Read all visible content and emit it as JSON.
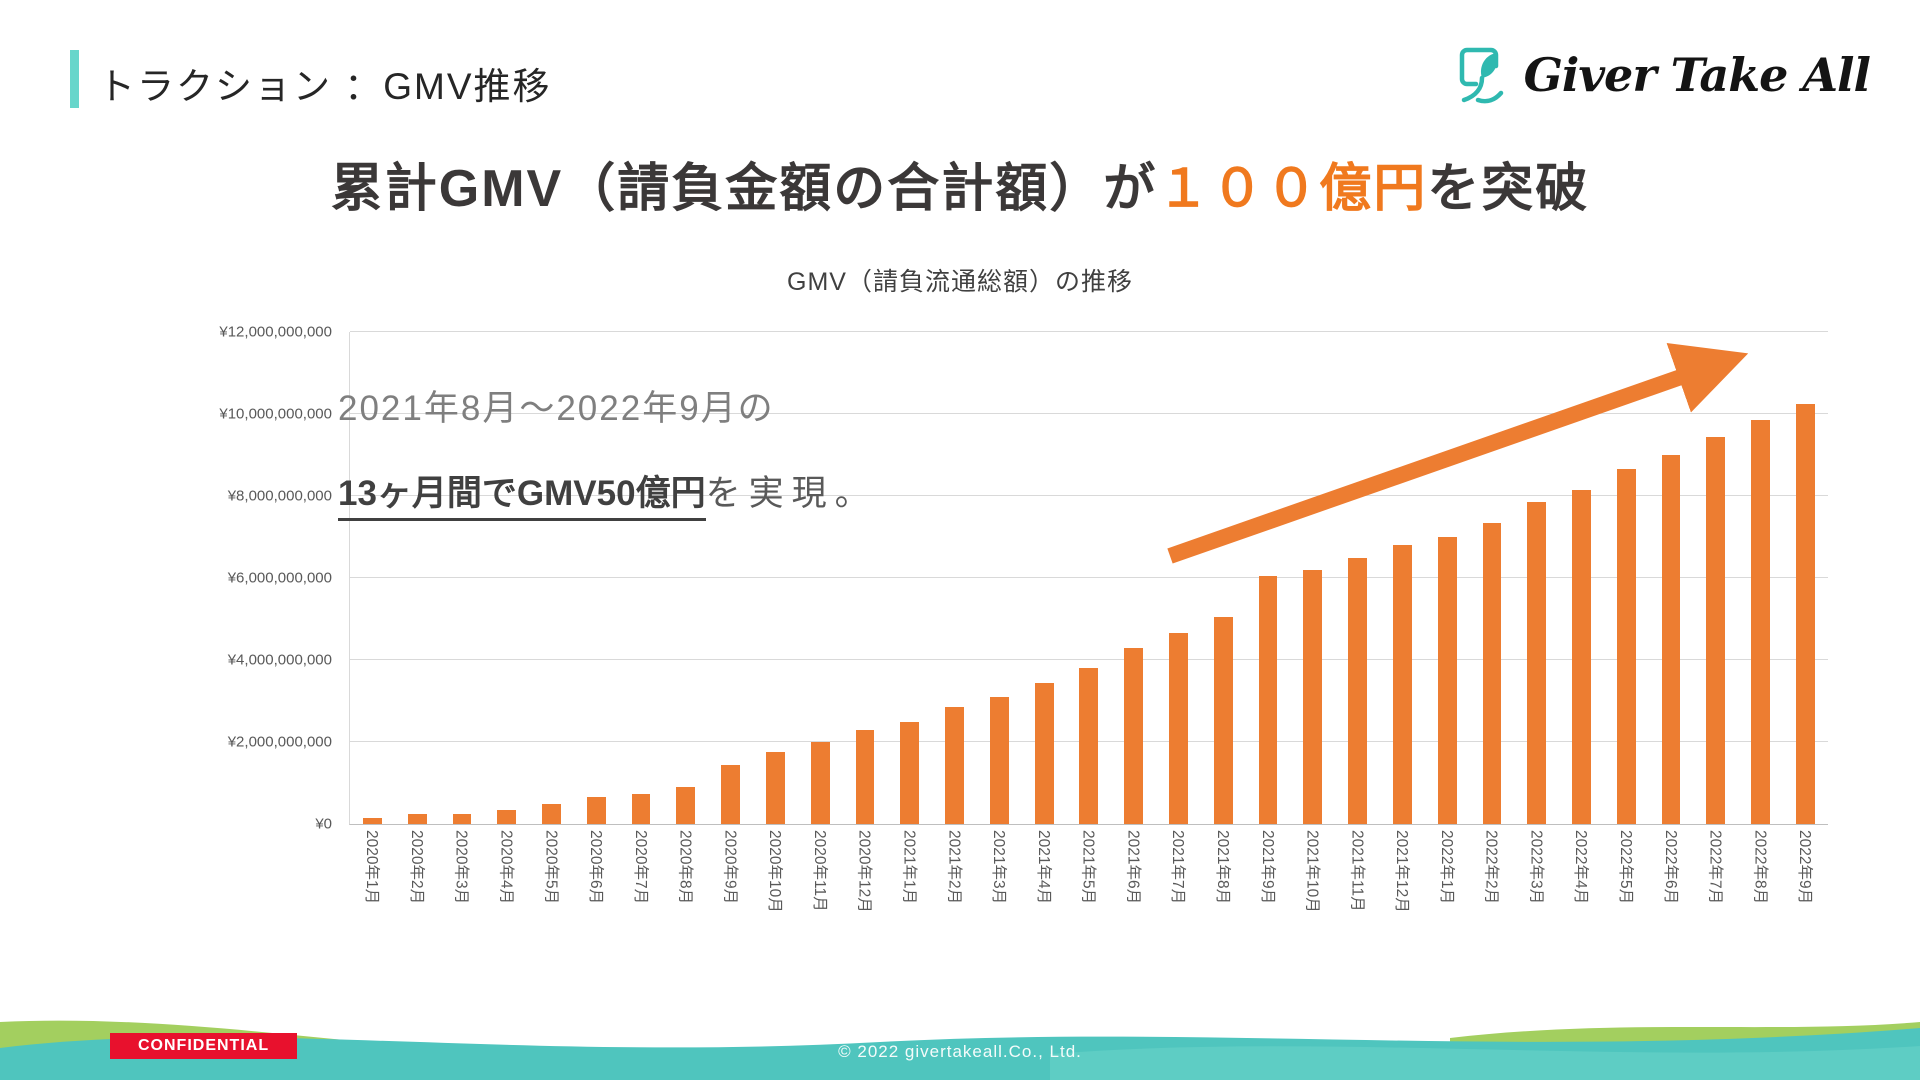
{
  "header": {
    "title": "トラクション ：GMV推移"
  },
  "logo": {
    "text": "Giver Take All"
  },
  "main_title": {
    "pre": "累計GMV（請負金額の合計額）が",
    "highlight": "１００億円",
    "post": "を突破"
  },
  "annotation": {
    "line1": "2021年8月～2022年9月の",
    "line2_bold": "13ヶ月間でGMV50億円",
    "line2_rest": "を実現。"
  },
  "chart_data": {
    "type": "bar",
    "title": "GMV（請負流通総額）の推移",
    "categories": [
      "2020年1月",
      "2020年2月",
      "2020年3月",
      "2020年4月",
      "2020年5月",
      "2020年6月",
      "2020年7月",
      "2020年8月",
      "2020年9月",
      "2020年10月",
      "2020年11月",
      "2020年12月",
      "2021年1月",
      "2021年2月",
      "2021年3月",
      "2021年4月",
      "2021年5月",
      "2021年6月",
      "2021年7月",
      "2021年8月",
      "2021年9月",
      "2021年10月",
      "2021年11月",
      "2021年12月",
      "2022年1月",
      "2022年2月",
      "2022年3月",
      "2022年4月",
      "2022年5月",
      "2022年6月",
      "2022年7月",
      "2022年8月",
      "2022年9月"
    ],
    "values": [
      150000000,
      250000000,
      250000000,
      350000000,
      480000000,
      650000000,
      720000000,
      900000000,
      1450000000,
      1750000000,
      2000000000,
      2300000000,
      2500000000,
      2850000000,
      3100000000,
      3450000000,
      3800000000,
      4300000000,
      4650000000,
      5050000000,
      6050000000,
      6200000000,
      6500000000,
      6800000000,
      7000000000,
      7350000000,
      7850000000,
      8150000000,
      8650000000,
      9000000000,
      9450000000,
      9850000000,
      10250000000
    ],
    "xlabel": "",
    "ylabel": "",
    "ylim": [
      0,
      12000000000
    ],
    "y_tick_labels": [
      "¥0",
      "¥2,000,000,000",
      "¥4,000,000,000",
      "¥6,000,000,000",
      "¥8,000,000,000",
      "¥10,000,000,000",
      "¥12,000,000,000"
    ],
    "grid": true,
    "legend": "none",
    "bar_color": "#ED7D31"
  },
  "footer": {
    "confidential": "CONFIDENTIAL",
    "copyright": "© 2022 givertakeall.Co., Ltd."
  },
  "colors": {
    "accent_teal": "#67D6CB",
    "footer_teal": "#4FC5BE",
    "footer_green": "#A3CF5F",
    "orange": "#ED7D31",
    "highlight_orange": "#F0791E",
    "confidential_red": "#E8112D"
  }
}
